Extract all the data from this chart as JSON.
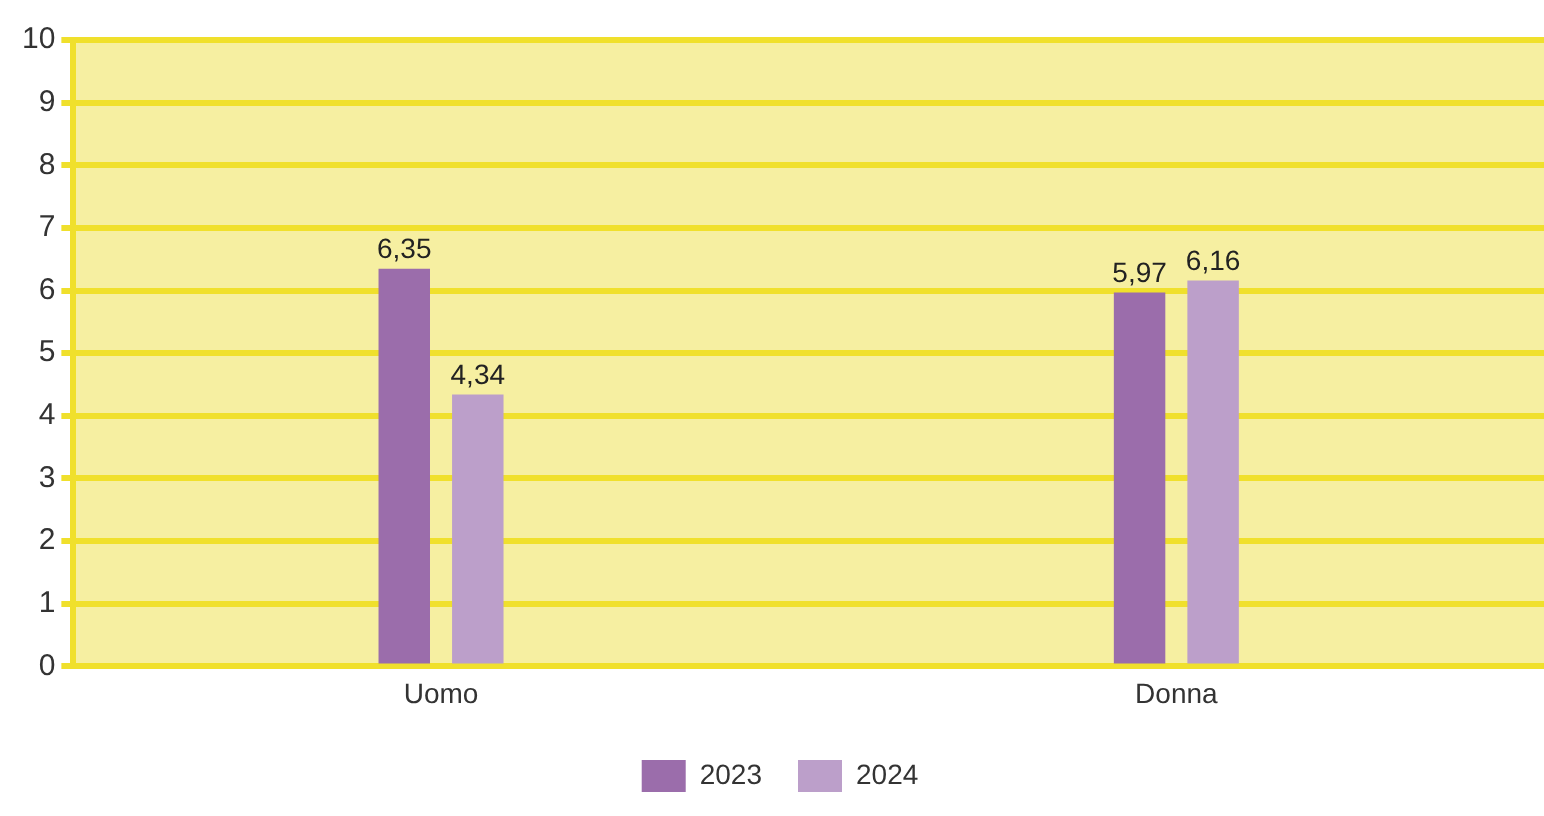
{
  "chart_data": {
    "type": "bar",
    "categories": [
      "Uomo",
      "Donna"
    ],
    "series": [
      {
        "name": "2023",
        "color": "#9b6dab",
        "values": [
          6.35,
          5.97
        ],
        "value_labels": [
          "6,35",
          "5,97"
        ]
      },
      {
        "name": "2024",
        "color": "#bc9fca",
        "values": [
          4.34,
          6.16
        ],
        "value_labels": [
          "4,34",
          "6,16"
        ]
      }
    ],
    "ylim": [
      0,
      10
    ],
    "yticks": [
      0,
      1,
      2,
      3,
      4,
      5,
      6,
      7,
      8,
      9,
      10
    ],
    "grid": "y",
    "legend": "bottom"
  }
}
